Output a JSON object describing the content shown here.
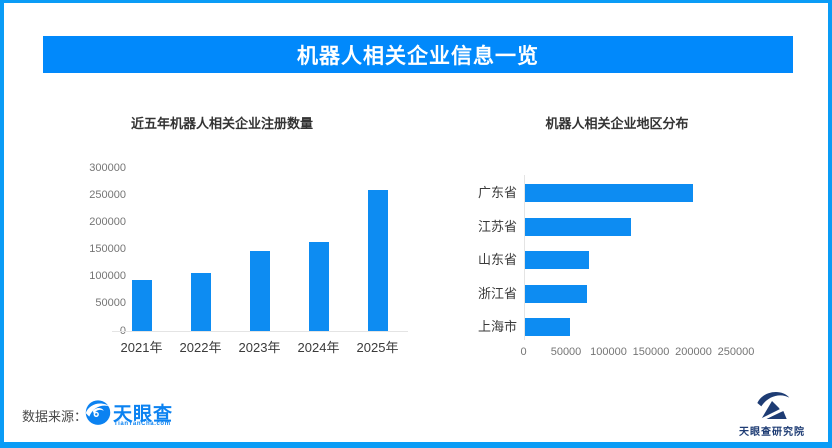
{
  "page": {
    "title": "机器人相关企业信息一览"
  },
  "colors": {
    "banner_blue": "#0189fb",
    "bar_blue": "#0d8cf2",
    "frame_blue": "#0a9cf6",
    "logo_blue": "#0b82f1",
    "logo_navy": "#1e3c74"
  },
  "chart_data": [
    {
      "type": "bar",
      "orientation": "vertical",
      "title": "近五年机器人相关企业注册数量",
      "categories": [
        "2021年",
        "2022年",
        "2023年",
        "2024年",
        "2025年"
      ],
      "values": [
        95000,
        107000,
        148000,
        164000,
        260000
      ],
      "yticks": [
        0,
        50000,
        100000,
        150000,
        200000,
        250000,
        300000
      ],
      "ylim": [
        0,
        300000
      ],
      "xlabel": "",
      "ylabel": "",
      "grid": false,
      "legend": "none",
      "bar_color": "#0d8cf2"
    },
    {
      "type": "bar",
      "orientation": "horizontal",
      "title": "机器人相关企业地区分布",
      "categories": [
        "广东省",
        "江苏省",
        "山东省",
        "浙江省",
        "上海市"
      ],
      "values": [
        198000,
        125000,
        75000,
        73000,
        53000
      ],
      "xticks": [
        0,
        50000,
        100000,
        150000,
        200000,
        250000
      ],
      "xlim": [
        0,
        250000
      ],
      "xlabel": "",
      "ylabel": "",
      "grid": false,
      "legend": "none",
      "bar_color": "#0d8cf2"
    }
  ],
  "footer": {
    "source_label": "数据来源：",
    "source_logo_text": "天眼查",
    "source_logo_sub": "TianYanCha.com",
    "org_logo_text": "天眼查研究院"
  }
}
